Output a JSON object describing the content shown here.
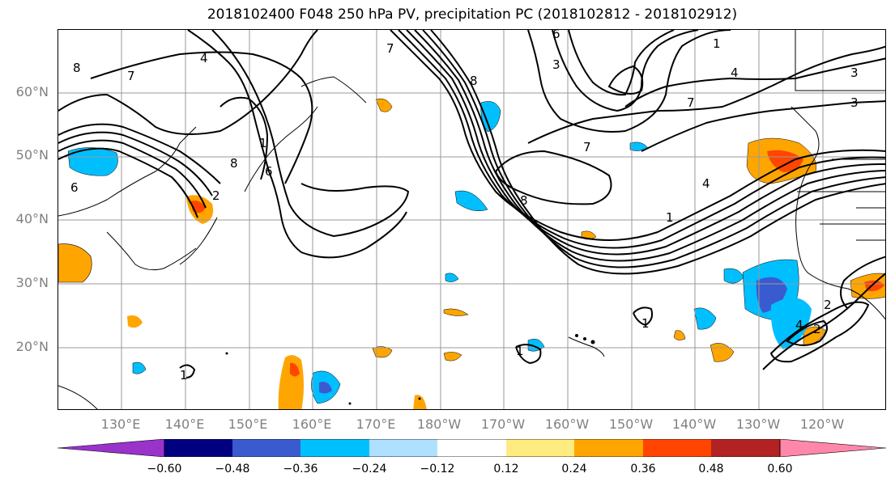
{
  "title": "2018102400 F048 250 hPa PV, precipitation PC (2018102812 - 2018102912)",
  "lat_labels": [
    "60°N",
    "50°N",
    "40°N",
    "30°N",
    "20°N"
  ],
  "lon_labels": [
    "130°E",
    "140°E",
    "150°E",
    "160°E",
    "170°E",
    "180°W",
    "170°W",
    "160°W",
    "150°W",
    "140°W",
    "130°W",
    "120°W"
  ],
  "contour_labels": [
    "8",
    "7",
    "4",
    "6",
    "7",
    "8",
    "1",
    "6",
    "8",
    "6",
    "3",
    "4",
    "3",
    "3",
    "1",
    "7",
    "8",
    "7",
    "1",
    "4",
    "2",
    "4",
    "2",
    "1",
    "1",
    "1",
    "2"
  ],
  "colorbar": {
    "colors": [
      "#9933cc",
      "#000080",
      "#3a5bd0",
      "#00bfff",
      "#b0e0ff",
      "#ffffff",
      "#ffec80",
      "#ffa500",
      "#ff4500",
      "#b22222",
      "#ff88aa"
    ],
    "ticks": [
      "−0.60",
      "−0.48",
      "−0.36",
      "−0.24",
      "−0.12",
      "0.12",
      "0.24",
      "0.36",
      "0.48",
      "0.60"
    ]
  }
}
